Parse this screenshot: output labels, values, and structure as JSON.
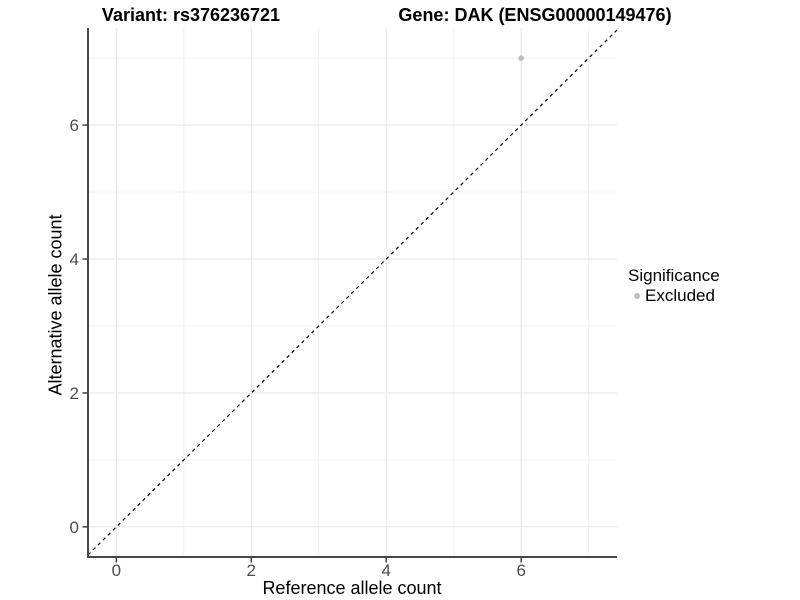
{
  "header": {
    "variant_title": "Variant: rs376236721",
    "gene_title": "Gene: DAK (ENSG00000149476)"
  },
  "chart_data": {
    "type": "scatter",
    "title_left": "Variant: rs376236721",
    "title_right": "Gene: DAK (ENSG00000149476)",
    "xlabel": "Reference allele count",
    "ylabel": "Alternative allele count",
    "xlim": [
      -0.42,
      7.42
    ],
    "ylim": [
      -0.45,
      7.45
    ],
    "x_major_ticks": [
      0,
      2,
      4,
      6
    ],
    "y_major_ticks": [
      0,
      2,
      4,
      6
    ],
    "x_minor_gridlines": [
      1,
      3,
      5,
      7
    ],
    "y_minor_gridlines": [
      1,
      3,
      5,
      7
    ],
    "grid": true,
    "reference_line": {
      "type": "identity",
      "slope": 1,
      "intercept": 0,
      "style": "dashed",
      "color": "#000000"
    },
    "series": [
      {
        "name": "Excluded",
        "color": "#bdbdbd",
        "points": [
          {
            "x": 6,
            "y": 7
          }
        ]
      }
    ],
    "legend": {
      "title": "Significance",
      "position": "right",
      "items": [
        {
          "label": "Excluded",
          "color": "#bdbdbd"
        }
      ]
    },
    "style": {
      "background": "#ffffff",
      "grid_major_color": "#e6e6e6",
      "grid_minor_color": "#f0f0f0",
      "axis_line_color": "#474747",
      "tick_color": "#333333",
      "tick_label_color": "#4d4d4d"
    }
  }
}
